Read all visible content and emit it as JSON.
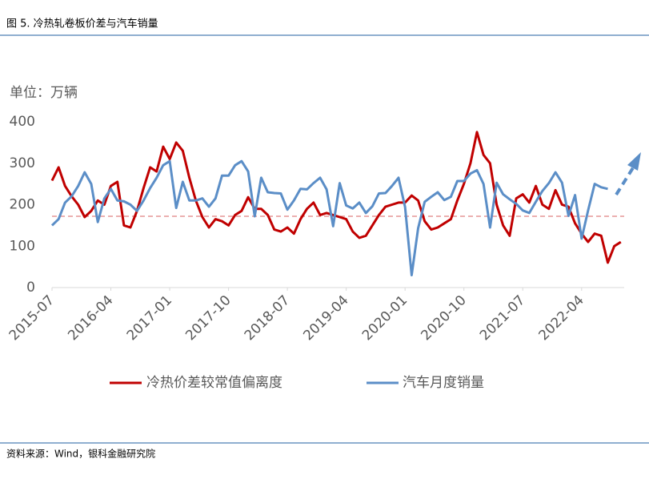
{
  "chart_data": {
    "type": "line",
    "title": "图 5. 冷热轧卷板价差与汽车销量",
    "unit_label": "单位：万辆",
    "source": "资料来源：Wind，银科金融研究院",
    "categories": [
      "2015-07",
      null,
      null,
      null,
      null,
      null,
      null,
      null,
      null,
      "2016-04",
      null,
      null,
      null,
      null,
      null,
      null,
      null,
      null,
      "2017-01",
      null,
      null,
      null,
      null,
      null,
      null,
      null,
      null,
      "2017-10",
      null,
      null,
      null,
      null,
      null,
      null,
      null,
      null,
      "2018-07",
      null,
      null,
      null,
      null,
      null,
      null,
      null,
      null,
      "2019-04",
      null,
      null,
      null,
      null,
      null,
      null,
      null,
      null,
      "2020-01",
      null,
      null,
      null,
      null,
      null,
      null,
      null,
      null,
      "2020-10",
      null,
      null,
      null,
      null,
      null,
      null,
      null,
      null,
      "2021-07",
      null,
      null,
      null,
      null,
      null,
      null,
      null,
      null,
      "2022-04",
      null,
      null,
      null,
      null,
      null,
      null
    ],
    "series": [
      {
        "name": "冷热价差较常值偏离度",
        "color": "#c00000",
        "values": [
          258,
          290,
          245,
          220,
          200,
          170,
          185,
          210,
          200,
          245,
          255,
          150,
          145,
          185,
          240,
          290,
          280,
          340,
          310,
          350,
          330,
          265,
          210,
          170,
          145,
          165,
          160,
          150,
          175,
          185,
          218,
          190,
          190,
          175,
          140,
          135,
          145,
          130,
          165,
          190,
          205,
          175,
          180,
          175,
          170,
          165,
          135,
          120,
          125,
          150,
          175,
          195,
          200,
          205,
          205,
          222,
          210,
          160,
          140,
          145,
          155,
          165,
          210,
          250,
          300,
          375,
          320,
          300,
          200,
          150,
          125,
          215,
          225,
          205,
          245,
          200,
          190,
          235,
          200,
          195,
          155,
          130,
          110,
          130,
          125,
          60,
          100,
          110
        ]
      },
      {
        "name": "汽车月度销量",
        "color": "#5b8ec7",
        "values": [
          150,
          165,
          205,
          220,
          245,
          278,
          250,
          158,
          215,
          238,
          210,
          208,
          200,
          185,
          210,
          240,
          265,
          295,
          305,
          192,
          255,
          210,
          210,
          215,
          195,
          215,
          270,
          270,
          295,
          305,
          280,
          172,
          265,
          230,
          228,
          227,
          188,
          210,
          238,
          237,
          252,
          265,
          237,
          148,
          252,
          198,
          191,
          205,
          180,
          196,
          227,
          228,
          245,
          265,
          194,
          30,
          143,
          207,
          219,
          230,
          211,
          219,
          257,
          257,
          275,
          283,
          250,
          145,
          253,
          225,
          213,
          202,
          186,
          180,
          207,
          233,
          252,
          278,
          253,
          173,
          223,
          118,
          186,
          250,
          242,
          238,
          null,
          null
        ]
      }
    ],
    "ylim": [
      0,
      400
    ],
    "yticks": [
      0,
      100,
      200,
      300,
      400
    ],
    "reference_line": 172,
    "grid": false
  }
}
